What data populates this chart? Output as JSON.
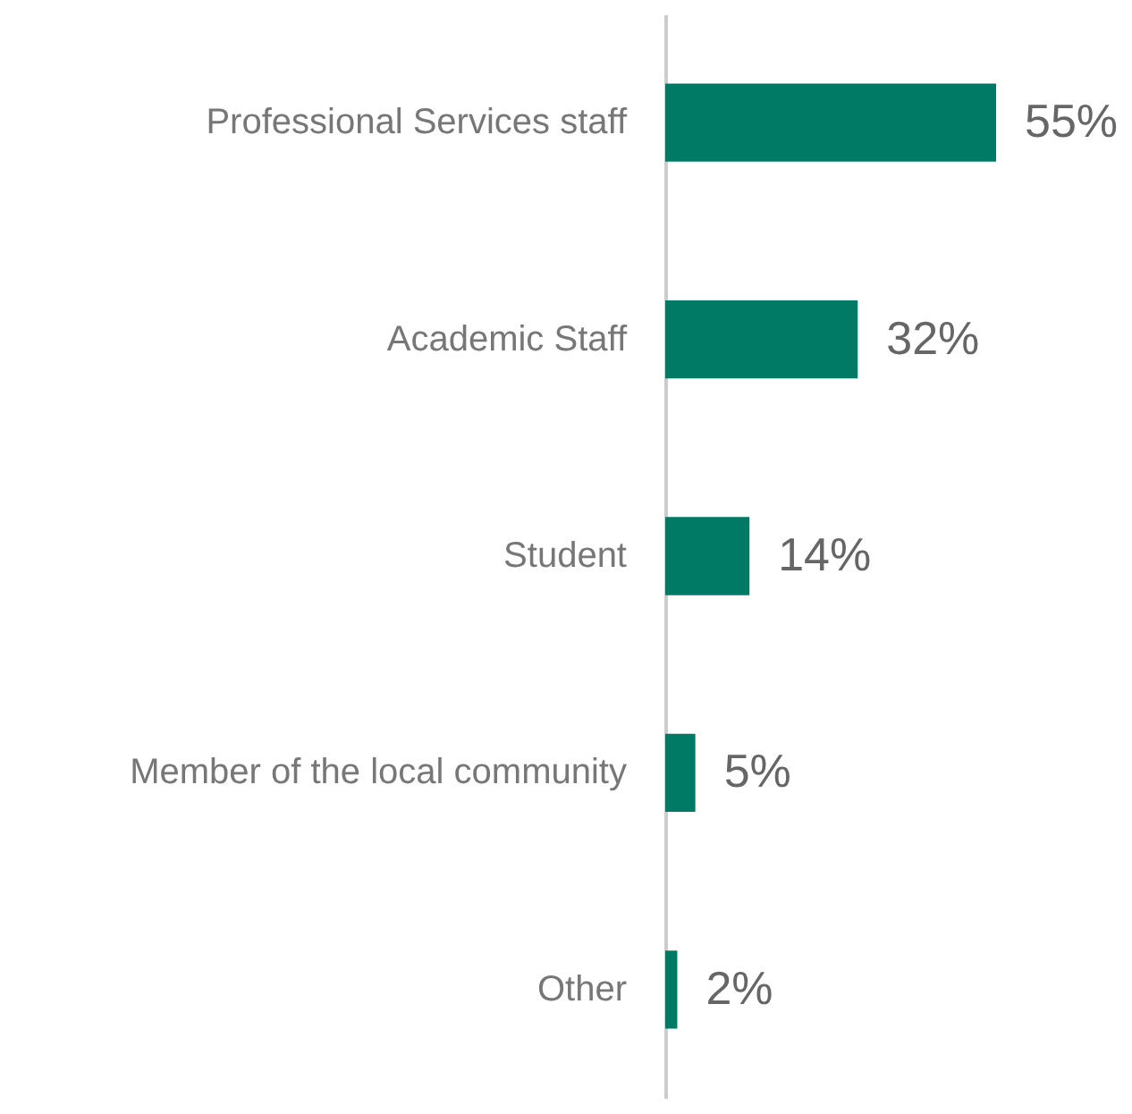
{
  "chart_data": {
    "type": "bar",
    "orientation": "horizontal",
    "categories": [
      "Professional Services staff",
      "Academic Staff",
      "Student",
      "Member of the local community",
      "Other"
    ],
    "values": [
      55,
      32,
      14,
      5,
      2
    ],
    "value_labels": [
      "55%",
      "32%",
      "14%",
      "5%",
      "2%"
    ],
    "color": "#007a64"
  }
}
